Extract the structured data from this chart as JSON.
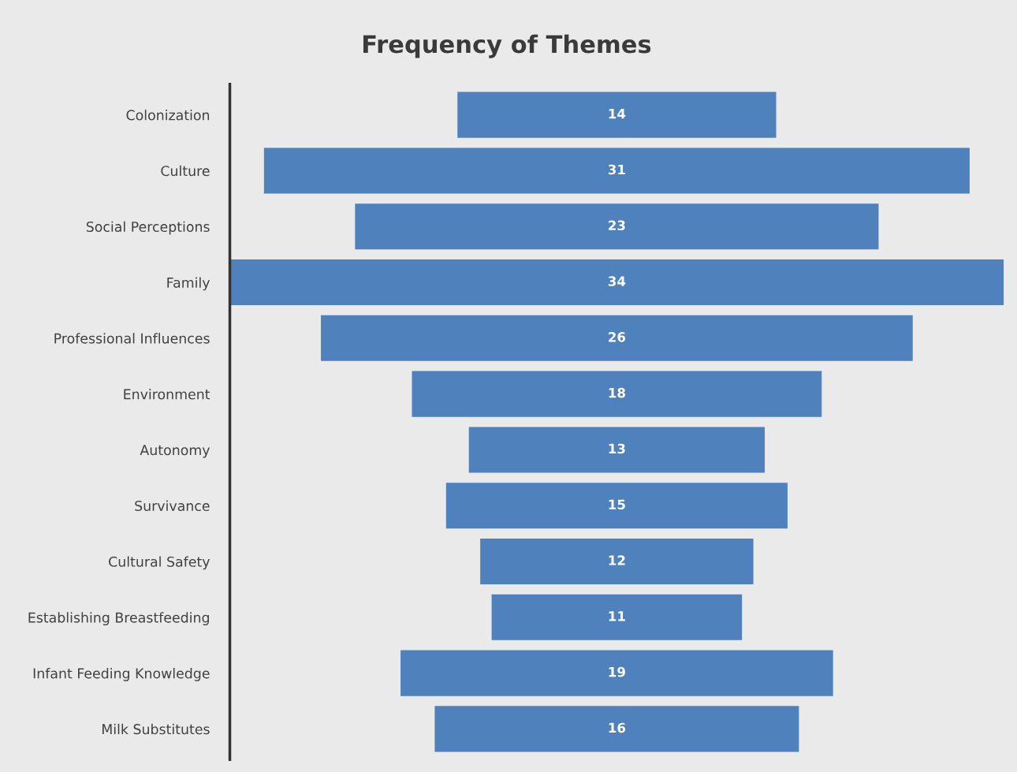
{
  "chart_data": {
    "type": "other",
    "title": "Frequency of Themes",
    "categories": [
      "Colonization",
      "Culture",
      "Social Perceptions",
      "Family",
      "Professional Influences",
      "Environment",
      "Autonomy",
      "Survivance",
      "Cultural Safety",
      "Establishing Breastfeeding",
      "Infant Feeding Knowledge",
      "Milk Substitutes"
    ],
    "values": [
      14,
      31,
      23,
      34,
      26,
      18,
      13,
      15,
      12,
      11,
      19,
      16
    ],
    "color": "#4f81bd",
    "data_labels": true
  }
}
